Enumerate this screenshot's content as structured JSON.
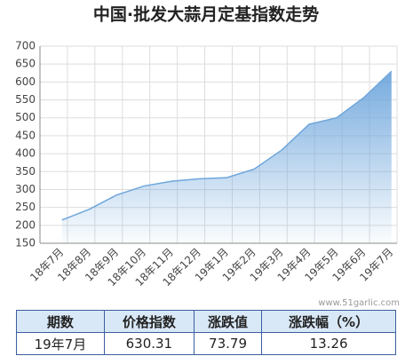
{
  "chart_data": {
    "type": "area",
    "title": "中国·批发大蒜月定基指数走势",
    "categories": [
      "18年7月",
      "18年8月",
      "18年9月",
      "18年10月",
      "18年11月",
      "18年12月",
      "19年1月",
      "19年2月",
      "19年3月",
      "19年4月",
      "19年5月",
      "19年6月",
      "19年7月"
    ],
    "values": [
      215,
      245,
      285,
      310,
      323,
      330,
      333,
      357,
      410,
      482,
      500,
      557,
      630
    ],
    "color": "#6ea6dc",
    "ylim": [
      150,
      700
    ],
    "yticks": [
      150,
      200,
      250,
      300,
      350,
      400,
      450,
      500,
      550,
      600,
      650,
      700
    ],
    "grid": true
  },
  "table": {
    "header": [
      "期数",
      "价格指数",
      "涨跌值",
      "涨跌幅（%）"
    ],
    "rows": [
      [
        "19年7月",
        "630.31",
        "73.79",
        "13.26"
      ]
    ]
  },
  "watermark": "www.51garlic.com"
}
